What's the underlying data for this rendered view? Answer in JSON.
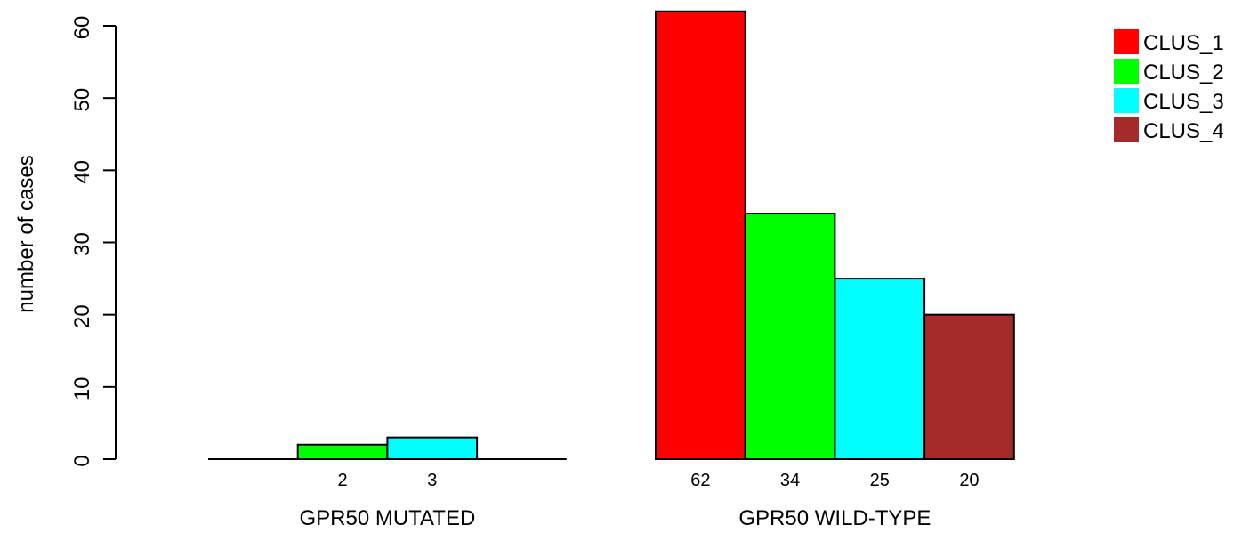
{
  "chart_data": {
    "type": "bar",
    "ylabel": "number of cases",
    "ylim": [
      0,
      60
    ],
    "yticks": [
      0,
      10,
      20,
      30,
      40,
      50,
      60
    ],
    "legend": {
      "position": "top-right",
      "entries": [
        {
          "name": "CLUS_1",
          "color": "#ff0000"
        },
        {
          "name": "CLUS_2",
          "color": "#00ff00"
        },
        {
          "name": "CLUS_3",
          "color": "#00ffff"
        },
        {
          "name": "CLUS_4",
          "color": "#a52a2a"
        }
      ]
    },
    "groups": [
      {
        "label": "GPR50 MUTATED",
        "bars": [
          {
            "series": "CLUS_1",
            "value": 0,
            "label": ""
          },
          {
            "series": "CLUS_2",
            "value": 2,
            "label": "2"
          },
          {
            "series": "CLUS_3",
            "value": 3,
            "label": "3"
          },
          {
            "series": "CLUS_4",
            "value": 0,
            "label": ""
          }
        ]
      },
      {
        "label": "GPR50 WILD-TYPE",
        "bars": [
          {
            "series": "CLUS_1",
            "value": 62,
            "label": "62"
          },
          {
            "series": "CLUS_2",
            "value": 34,
            "label": "34"
          },
          {
            "series": "CLUS_3",
            "value": 25,
            "label": "25"
          },
          {
            "series": "CLUS_4",
            "value": 20,
            "label": "20"
          }
        ]
      }
    ]
  }
}
